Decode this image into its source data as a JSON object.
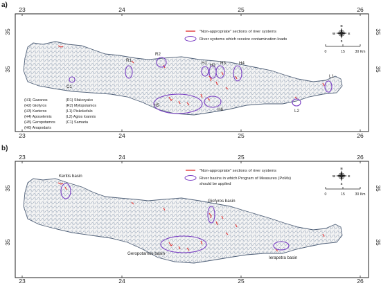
{
  "panels": [
    {
      "tag": "a)",
      "lon_ticks": [
        "23",
        "24",
        "25",
        "26"
      ],
      "lat_ticks": [
        "35",
        "35"
      ],
      "legend": {
        "line_label": "\"Non-appropriate\" sections of river systems",
        "ellipse_label": "River systems which receive contamination loads"
      },
      "scale": {
        "labels": [
          "0",
          "15",
          "30 Km"
        ]
      },
      "compass": [
        "N",
        "S",
        "E",
        "W"
      ],
      "markers": [
        "R1",
        "R2",
        "H1",
        "H2",
        "H3",
        "H4",
        "C1",
        "L1",
        "L2",
        "H5",
        "H6"
      ],
      "key_left": [
        "(H1) Gazanos",
        "(H2) Giofyros",
        "(H3) Karteros",
        "(H4) Aposelemis",
        "(H5) Geropotamos",
        "(H6) Anapodaris"
      ],
      "key_right": [
        "(R1) Sfakoryako",
        "(R2) Mylopotamos",
        "(L1) Piskokefalo",
        "(L2) Agios Ioannis",
        "(C1) Samaria"
      ]
    },
    {
      "tag": "b)",
      "lon_ticks": [
        "23",
        "24",
        "25",
        "26"
      ],
      "lat_ticks": [
        "35",
        "35"
      ],
      "legend": {
        "line_label": "\"Non-appropriate\" sections of river systems",
        "ellipse_label_1": "River basins in which Program of Measures (PoMs)",
        "ellipse_label_2": "should be applied"
      },
      "scale": {
        "labels": [
          "0",
          "15",
          "30 Km"
        ]
      },
      "compass": [
        "N",
        "S",
        "E",
        "W"
      ],
      "basins": [
        "Keritis basin",
        "Giofyros basin",
        "Geropotamos basin",
        "Ierapetra basin"
      ]
    }
  ],
  "colors": {
    "island_fill": "#f4f4f4",
    "river": "#6b7f99",
    "non_appropriate": "#e23a3a",
    "ellipse": "#7a3fc4",
    "frame": "#222222"
  }
}
